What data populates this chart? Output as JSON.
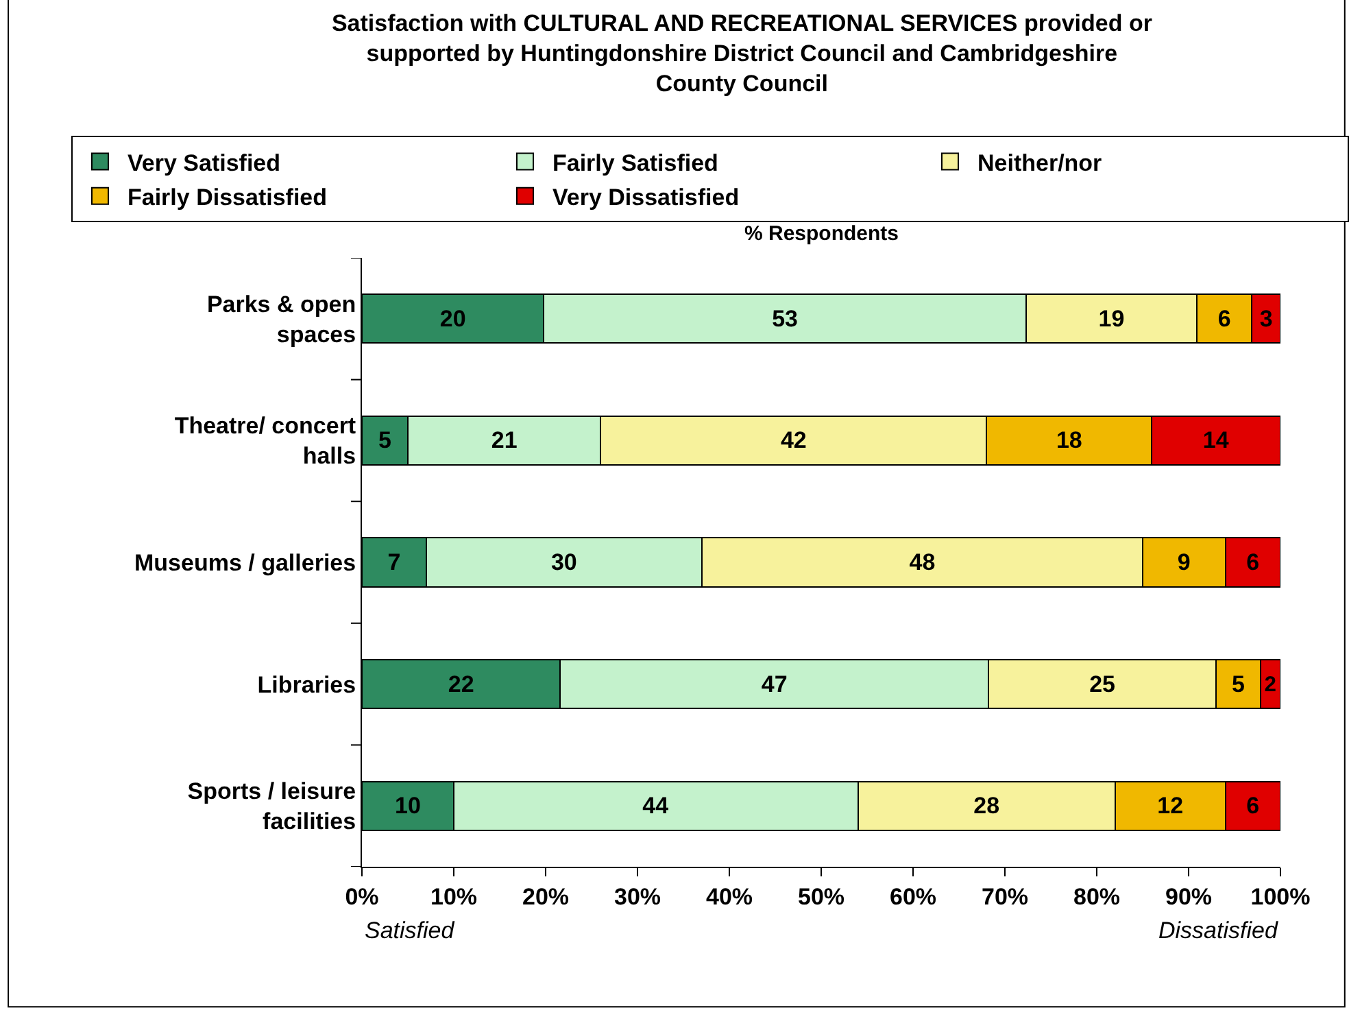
{
  "chart_data": {
    "type": "bar",
    "orientation": "horizontal",
    "stacked": true,
    "title": "Satisfaction with CULTURAL AND RECREATIONAL SERVICES provided or\nsupported by Huntingdonshire District Council and Cambridgeshire\nCounty Council",
    "xlabel": "% Respondents",
    "categories": [
      "Parks & open\nspaces",
      "Theatre/ concert\nhalls",
      "Museums / galleries",
      "Libraries",
      "Sports / leisure\nfacilities"
    ],
    "series": [
      {
        "name": "Very Satisfied",
        "color": "#2e8b60",
        "values": [
          19.8,
          5,
          7,
          21.6,
          10
        ],
        "value_labels": [
          "20",
          "5",
          "7",
          "22",
          "10"
        ]
      },
      {
        "name": "Fairly Satisfied",
        "color": "#c4f2cc",
        "values": [
          52.5,
          21,
          30,
          46.6,
          44
        ],
        "value_labels": [
          "53",
          "21",
          "30",
          "47",
          "44"
        ]
      },
      {
        "name": "Neither/nor",
        "color": "#f7f29c",
        "values": [
          18.6,
          42,
          48,
          24.8,
          28
        ],
        "value_labels": [
          "19",
          "42",
          "48",
          "25",
          "28"
        ]
      },
      {
        "name": "Fairly Dissatisfied",
        "color": "#f0b800",
        "values": [
          6.0,
          18,
          9,
          4.8,
          12
        ],
        "value_labels": [
          "6",
          "18",
          "9",
          "5",
          "12"
        ]
      },
      {
        "name": "Very Dissatisfied",
        "color": "#e00000",
        "values": [
          3.1,
          14,
          6,
          2.2,
          6
        ],
        "value_labels": [
          "3",
          "14",
          "6",
          "2",
          "6"
        ]
      }
    ],
    "xlim": [
      0,
      100
    ],
    "xticks": [
      {
        "value": 0,
        "label": "0%"
      },
      {
        "value": 10,
        "label": "10%"
      },
      {
        "value": 20,
        "label": "20%"
      },
      {
        "value": 30,
        "label": "30%"
      },
      {
        "value": 40,
        "label": "40%"
      },
      {
        "value": 50,
        "label": "50%"
      },
      {
        "value": 60,
        "label": "60%"
      },
      {
        "value": 70,
        "label": "70%"
      },
      {
        "value": 80,
        "label": "80%"
      },
      {
        "value": 90,
        "label": "90%"
      },
      {
        "value": 100,
        "label": "100%"
      }
    ],
    "annotations": [
      "Satisfied",
      "Dissatisfied"
    ],
    "legend": "top"
  }
}
